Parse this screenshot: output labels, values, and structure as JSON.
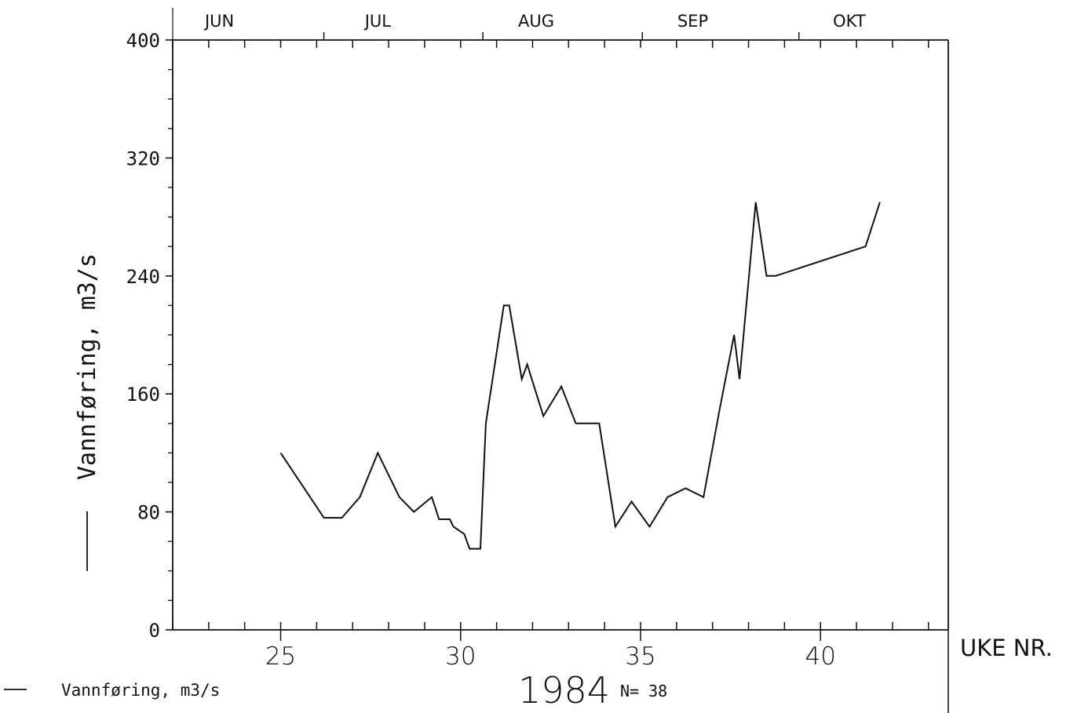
{
  "chart_data": {
    "type": "line",
    "ylabel": "Vannføring, m3/s",
    "xlabel": "UKE NR.",
    "year": "1984",
    "n_label": "N= 38",
    "legend": [
      {
        "label": "Vannføring, m3/s"
      }
    ],
    "ylim": [
      0,
      400
    ],
    "y_ticks": [
      0,
      80,
      160,
      240,
      320,
      400
    ],
    "xlim": [
      22.0,
      43.55
    ],
    "x_ticks": [
      25,
      30,
      35,
      40
    ],
    "months": [
      {
        "label": "JUN",
        "center": 23.3
      },
      {
        "label": "JUL",
        "center": 27.7
      },
      {
        "label": "AUG",
        "center": 32.1
      },
      {
        "label": "SEP",
        "center": 36.45
      },
      {
        "label": "OKT",
        "center": 40.8
      }
    ],
    "month_boundaries": [
      26.2,
      30.62,
      35.05,
      39.4
    ],
    "series": [
      {
        "name": "Vannføring, m3/s",
        "x": [
          25.0,
          26.2,
          26.7,
          27.2,
          27.7,
          28.3,
          28.7,
          29.2,
          29.4,
          29.7,
          29.8,
          30.1,
          30.25,
          30.55,
          30.7,
          31.2,
          31.35,
          31.7,
          31.85,
          32.3,
          32.8,
          33.2,
          33.85,
          34.3,
          34.75,
          35.25,
          35.75,
          36.25,
          36.75,
          37.2,
          37.6,
          37.75,
          38.2,
          38.5,
          38.75,
          41.25,
          41.65
        ],
        "y": [
          120,
          76,
          76,
          90,
          120,
          90,
          80,
          90,
          75,
          75,
          70,
          65,
          55,
          55,
          140,
          220,
          220,
          170,
          180,
          145,
          165,
          140,
          140,
          70,
          87,
          70,
          90,
          96,
          90,
          150,
          200,
          170,
          290,
          240,
          240,
          260,
          290
        ]
      }
    ]
  }
}
